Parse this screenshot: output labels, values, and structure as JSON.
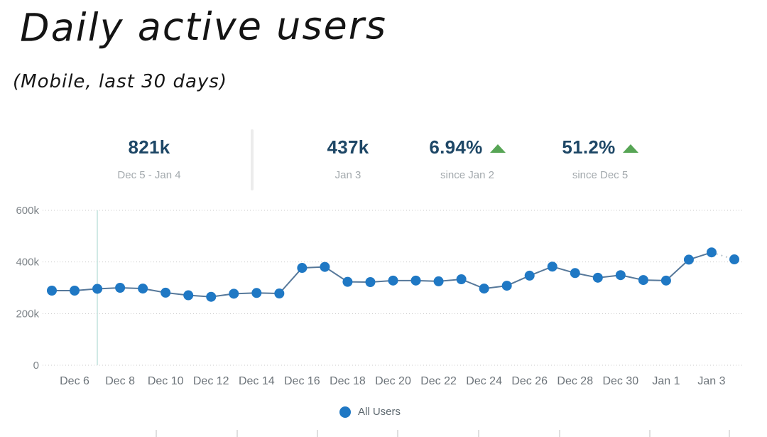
{
  "title": "Daily active users",
  "subtitle": "(Mobile, last 30 days)",
  "stats": [
    {
      "value": "821k",
      "label": "Dec 5 - Jan 4",
      "trend": null
    },
    {
      "value": "437k",
      "label": "Jan 3",
      "trend": null
    },
    {
      "value": "6.94%",
      "label": "since Jan 2",
      "trend": "up"
    },
    {
      "value": "51.2%",
      "label": "since Dec 5",
      "trend": "up"
    }
  ],
  "colors": {
    "stat_navy": "#1e4766",
    "muted_label": "#a3a9ad",
    "trend_up_green": "#57a555",
    "point": "#1f78c4",
    "line": "#56789a",
    "line_dotted": "#b9c4cd",
    "gridline": "#c8c8c8",
    "vline_teal": "#cfe9e5",
    "axis_label": "#6d747a",
    "axis_muted": "#7e8489",
    "legend_text": "#5c676e"
  },
  "chart_data": {
    "type": "line",
    "title": "Daily active users (Mobile, last 30 days)",
    "categories": [
      "Dec 5",
      "Dec 6",
      "Dec 7",
      "Dec 8",
      "Dec 9",
      "Dec 10",
      "Dec 11",
      "Dec 12",
      "Dec 13",
      "Dec 14",
      "Dec 15",
      "Dec 16",
      "Dec 17",
      "Dec 18",
      "Dec 19",
      "Dec 20",
      "Dec 21",
      "Dec 22",
      "Dec 23",
      "Dec 24",
      "Dec 25",
      "Dec 26",
      "Dec 27",
      "Dec 28",
      "Dec 29",
      "Dec 30",
      "Dec 31",
      "Jan 1",
      "Jan 2",
      "Jan 3",
      "Jan 4"
    ],
    "series": [
      {
        "name": "All Users",
        "values": [
          289,
          289,
          296,
          300,
          297,
          281,
          271,
          265,
          277,
          280,
          278,
          377,
          381,
          323,
          322,
          328,
          328,
          325,
          333,
          297,
          308,
          347,
          382,
          357,
          339,
          349,
          330,
          328,
          409,
          437,
          410
        ]
      }
    ],
    "unit": "k (thousands of users)",
    "ylim": [
      0,
      600
    ],
    "yticks": [
      {
        "value": 0,
        "label": "0"
      },
      {
        "value": 200,
        "label": "200k"
      },
      {
        "value": 400,
        "label": "400k"
      },
      {
        "value": 600,
        "label": "600k"
      }
    ],
    "xtick_labels": [
      "Dec 6",
      "Dec 8",
      "Dec 10",
      "Dec 12",
      "Dec 14",
      "Dec 16",
      "Dec 18",
      "Dec 20",
      "Dec 22",
      "Dec 24",
      "Dec 26",
      "Dec 28",
      "Dec 30",
      "Jan 1",
      "Jan 3"
    ],
    "grid": "horizontal-dotted",
    "vline_date": "Dec 7",
    "last_segment_dotted": true,
    "legend": {
      "position": "bottom-center",
      "entries": [
        {
          "label": "All Users",
          "color": "#1f78c4"
        }
      ]
    }
  }
}
